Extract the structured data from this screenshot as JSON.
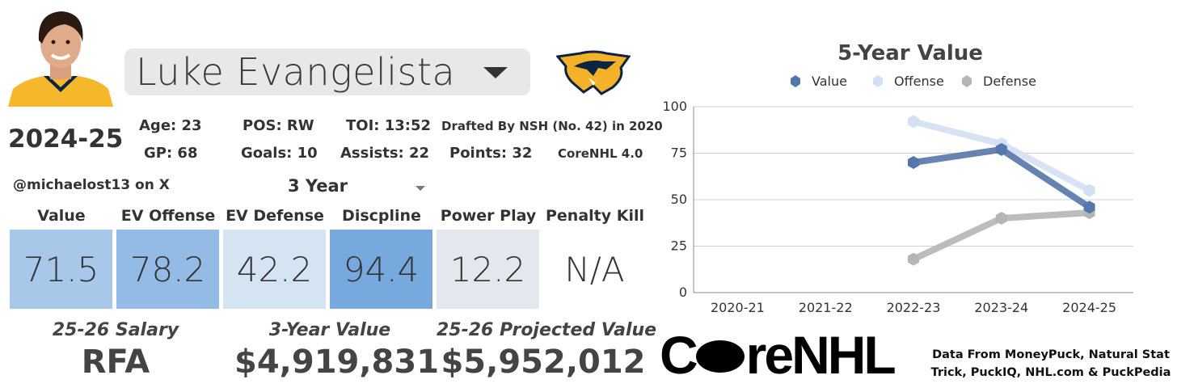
{
  "player": {
    "name": "Luke Evangelista",
    "season": "2024-25"
  },
  "stats": {
    "age": "Age: 23",
    "pos": "POS: RW",
    "toi": "TOI: 13:52",
    "drafted": "Drafted By NSH (No. 42) in 2020",
    "gp": "GP: 68",
    "goals": "Goals: 10",
    "assists": "Assists: 22",
    "points": "Points: 32",
    "model": "CoreNHL 4.0"
  },
  "handle": "@michaelost13 on X",
  "period_select": {
    "value": "3 Year"
  },
  "metrics": [
    {
      "label": "Value",
      "value": "71.5",
      "color": "#a8c8ea"
    },
    {
      "label": "EV Offense",
      "value": "78.2",
      "color": "#94bbe6"
    },
    {
      "label": "EV Defense",
      "value": "42.2",
      "color": "#d4e4f3"
    },
    {
      "label": "Discpline",
      "value": "94.4",
      "color": "#77a8de"
    },
    {
      "label": "Power Play",
      "value": "12.2",
      "color": "#e2e8ee"
    },
    {
      "label": "Penalty Kill",
      "value": "N/A",
      "color": "#ffffff"
    }
  ],
  "contract": {
    "salary_label": "25-26 Salary",
    "salary_value": "RFA",
    "value3_label": "3-Year Value",
    "value3_value": "$4,919,831",
    "proj_label": "25-26 Projected Value",
    "proj_value": "$5,952,012"
  },
  "brand": {
    "logo_text_a": "C",
    "logo_text_b": "reNHL",
    "credit": "Data From MoneyPuck, Natural Stat Trick, PuckIQ, NHL.com & PuckPedia"
  },
  "chart_data": {
    "type": "line",
    "title": "5-Year Value",
    "categories": [
      "2020-21",
      "2021-22",
      "2022-23",
      "2023-24",
      "2024-25"
    ],
    "ylim": [
      0,
      100
    ],
    "yticks": [
      0,
      25,
      50,
      75,
      100
    ],
    "grid": true,
    "legend": "top",
    "series": [
      {
        "name": "Value",
        "color": "#5576a8",
        "values": [
          null,
          null,
          70,
          77,
          46
        ]
      },
      {
        "name": "Offense",
        "color": "#d3dff2",
        "values": [
          null,
          null,
          92,
          80,
          55
        ]
      },
      {
        "name": "Defense",
        "color": "#b5b5b5",
        "values": [
          null,
          null,
          18,
          40,
          43
        ]
      }
    ]
  }
}
